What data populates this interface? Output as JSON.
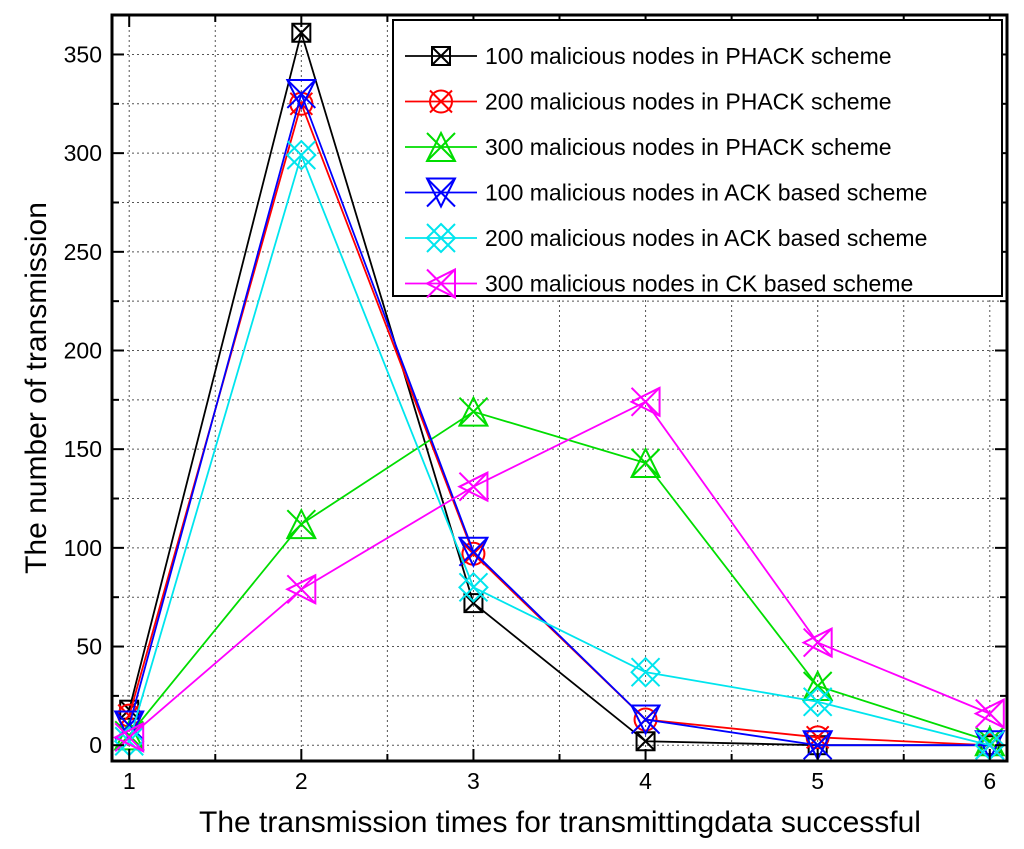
{
  "chart_data": {
    "type": "line",
    "title": "",
    "xlabel": "The transmission times  for transmittingdata successful",
    "ylabel": "The number of transmission",
    "x": [
      1,
      2,
      3,
      4,
      5,
      6
    ],
    "x_ticks": [
      "1",
      "2",
      "3",
      "4",
      "5",
      "6"
    ],
    "xlim": [
      0.9,
      6.1
    ],
    "y_ticks": [
      "0",
      "50",
      "100",
      "150",
      "200",
      "250",
      "300",
      "350"
    ],
    "ylim": [
      -8,
      370
    ],
    "grid": true,
    "legend_position": "top-right",
    "series": [
      {
        "name": "100 malicious nodes in PHACK scheme",
        "color": "#000000",
        "marker": "box-x",
        "values": [
          18,
          361,
          72,
          2,
          0,
          0
        ]
      },
      {
        "name": "200 malicious nodes in PHACK scheme",
        "color": "#ff0000",
        "marker": "circle-x",
        "values": [
          15,
          325,
          97,
          13,
          4,
          0
        ]
      },
      {
        "name": "300 malicious nodes in PHACK scheme",
        "color": "#00dd00",
        "marker": "triangle-up-x",
        "values": [
          5,
          112,
          169,
          143,
          30,
          2
        ]
      },
      {
        "name": "100 malicious nodes in ACK based scheme",
        "color": "#0000ff",
        "marker": "triangle-down-x",
        "values": [
          10,
          330,
          98,
          13,
          0,
          0
        ]
      },
      {
        "name": "200 malicious nodes in ACK based scheme",
        "color": "#00e5ee",
        "marker": "diamond-x",
        "values": [
          2,
          299,
          80,
          37,
          22,
          0
        ]
      },
      {
        "name": "300 malicious nodes in CK based scheme",
        "color": "#ff00ff",
        "marker": "triangle-left-x",
        "values": [
          4,
          79,
          131,
          174,
          52,
          16
        ]
      }
    ]
  }
}
